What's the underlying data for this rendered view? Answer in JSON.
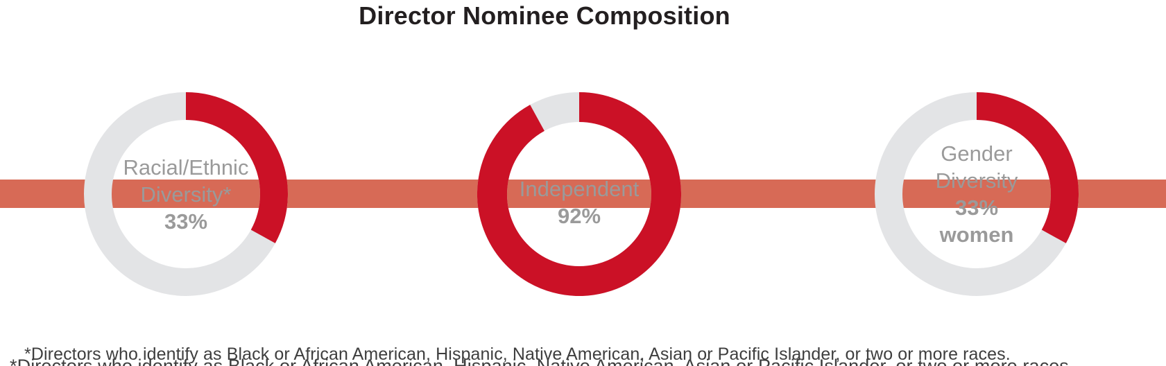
{
  "title": "Director Nominee Composition",
  "footnote": "*Directors who identify as Black or African American, Hispanic, Native American, Asian or Pacific Islander, or two or more races.",
  "footnote_clipped": "*Directors who identify as Black or African American, Hispanic, Native American, Asian or Pacific Islander, or two or more races.",
  "colors": {
    "accent_red": "#cb1126",
    "band_salmon": "#d76a56",
    "track_gray": "#e3e4e6",
    "label_gray": "#9a9a9a",
    "title_black": "#231f20",
    "footnote_gray": "#3e3e3e"
  },
  "chart_data": [
    {
      "type": "pie",
      "subtype": "donut",
      "name": "Racial/Ethnic Diversity",
      "value": 33,
      "remainder": 67,
      "unit": "%",
      "label_lines": [
        "Racial/Ethnic",
        "Diversity*"
      ],
      "value_label": "33%",
      "fill_color": "#cb1126",
      "track_color": "#e3e4e6",
      "start_angle_deg": 0,
      "direction": "clockwise",
      "legend": "none"
    },
    {
      "type": "pie",
      "subtype": "donut",
      "name": "Independent",
      "value": 92,
      "remainder": 8,
      "unit": "%",
      "label_lines": [
        "Independent"
      ],
      "value_label": "92%",
      "fill_color": "#cb1126",
      "track_color": "#e3e4e6",
      "start_angle_deg": 0,
      "direction": "clockwise",
      "legend": "none"
    },
    {
      "type": "pie",
      "subtype": "donut",
      "name": "Gender Diversity (women)",
      "value": 33,
      "remainder": 67,
      "unit": "%",
      "label_lines": [
        "Gender",
        "Diversity"
      ],
      "value_label": "33%",
      "value_suffix": "women",
      "fill_color": "#cb1126",
      "track_color": "#e3e4e6",
      "start_angle_deg": 0,
      "direction": "clockwise",
      "legend": "none"
    }
  ]
}
